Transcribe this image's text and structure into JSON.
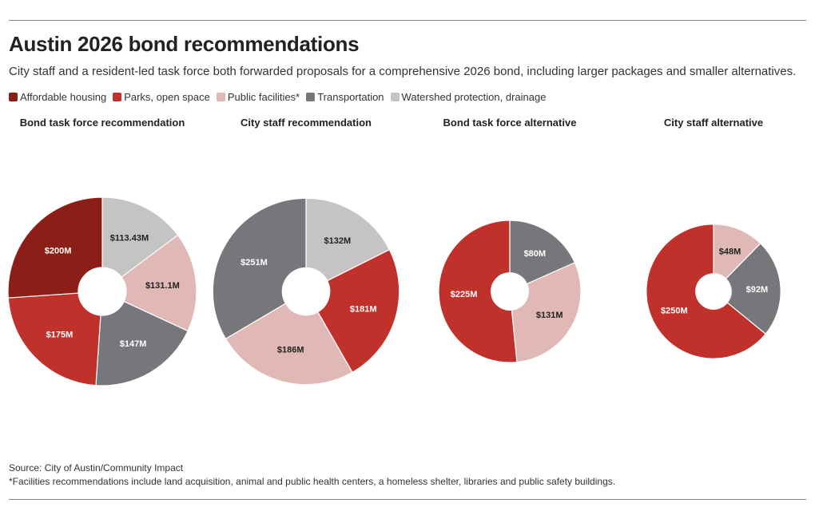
{
  "header": {
    "title": "Austin 2026 bond recommendations",
    "subtitle": "City staff and a resident-led task force both forwarded proposals for a comprehensive 2026 bond, including larger packages and smaller alternatives."
  },
  "legend": [
    {
      "label": "Affordable housing",
      "color": "#8b1e16"
    },
    {
      "label": "Parks, open space",
      "color": "#c0312b"
    },
    {
      "label": "Public facilities*",
      "color": "#e0b8b6"
    },
    {
      "label": "Transportation",
      "color": "#76777a"
    },
    {
      "label": "Watershed protection, drainage",
      "color": "#c4c4c4"
    }
  ],
  "chart_data": [
    {
      "type": "pie",
      "title": "Bond task force recommendation",
      "slices": [
        {
          "category": "Watershed protection, drainage",
          "value": 113.43,
          "label": "$113.43M"
        },
        {
          "category": "Public facilities*",
          "value": 131.1,
          "label": "$131.1M"
        },
        {
          "category": "Transportation",
          "value": 147,
          "label": "$147M"
        },
        {
          "category": "Parks, open space",
          "value": 175,
          "label": "$175M"
        },
        {
          "category": "Affordable housing",
          "value": 200,
          "label": "$200M"
        }
      ]
    },
    {
      "type": "pie",
      "title": "City staff recommendation",
      "slices": [
        {
          "category": "Watershed protection, drainage",
          "value": 132,
          "label": "$132M"
        },
        {
          "category": "Parks, open space",
          "value": 181,
          "label": "$181M"
        },
        {
          "category": "Public facilities*",
          "value": 186,
          "label": "$186M"
        },
        {
          "category": "Transportation",
          "value": 251,
          "label": "$251M"
        }
      ]
    },
    {
      "type": "pie",
      "title": "Bond task force alternative",
      "slices": [
        {
          "category": "Transportation",
          "value": 80,
          "label": "$80M"
        },
        {
          "category": "Public facilities*",
          "value": 131,
          "label": "$131M"
        },
        {
          "category": "Parks, open space",
          "value": 225,
          "label": "$225M"
        }
      ]
    },
    {
      "type": "pie",
      "title": "City staff alternative",
      "slices": [
        {
          "category": "Public facilities*",
          "value": 48,
          "label": "$48M"
        },
        {
          "category": "Transportation",
          "value": 92,
          "label": "$92M"
        },
        {
          "category": "Parks, open space",
          "value": 250,
          "label": "$250M"
        }
      ]
    }
  ],
  "footer": {
    "source": "Source: City of Austin/Community Impact",
    "footnote": "*Facilities recommendations include land acquisition, animal and public health centers, a homeless shelter, libraries and public safety buildings."
  }
}
